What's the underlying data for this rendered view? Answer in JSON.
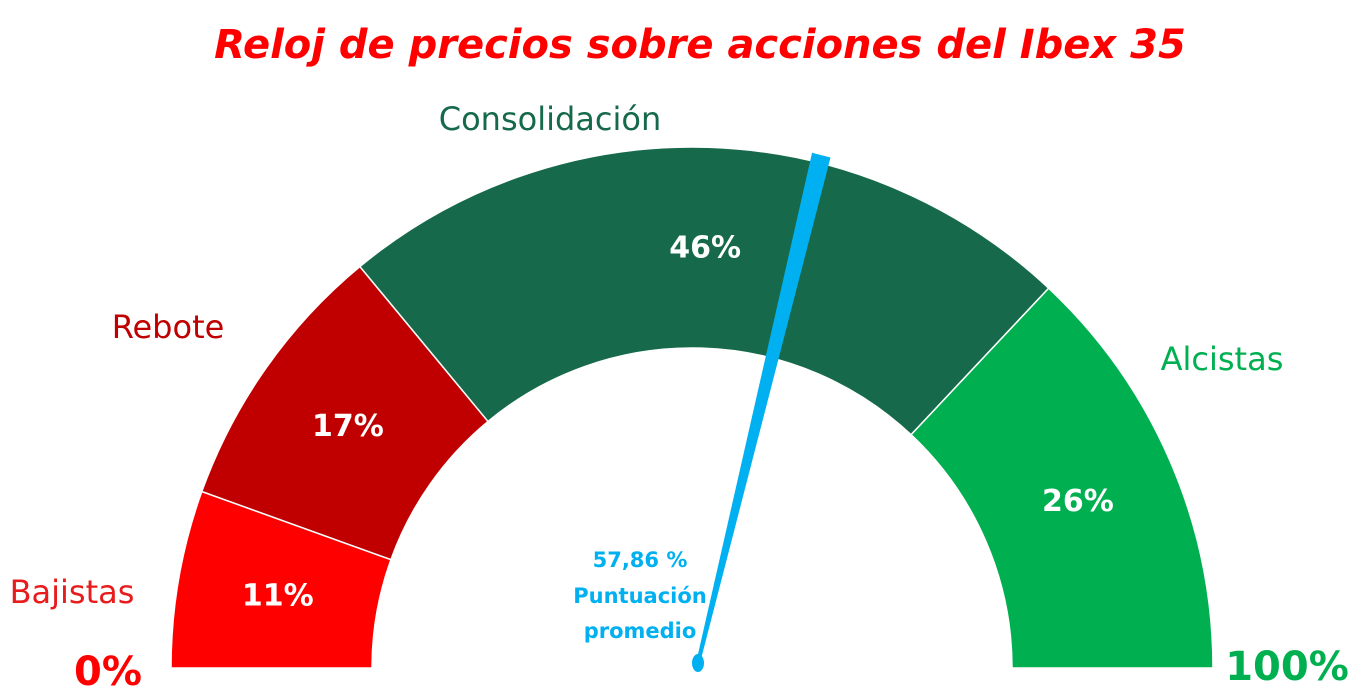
{
  "chart_data": {
    "type": "gauge",
    "title": "Reloj de precios sobre acciones del Ibex 35",
    "title_color": "#ff0000",
    "segments": [
      {
        "name": "Bajistas",
        "value": 11,
        "label": "11%",
        "color": "#ff0000",
        "name_color": "#e81c1c"
      },
      {
        "name": "Rebote",
        "value": 17,
        "label": "17%",
        "color": "#c00000",
        "name_color": "#c00000"
      },
      {
        "name": "Consolidación",
        "value": 46,
        "label": "46%",
        "color": "#16694a",
        "name_color": "#16694a"
      },
      {
        "name": "Alcistas",
        "value": 26,
        "label": "26%",
        "color": "#00b050",
        "name_color": "#00b050"
      }
    ],
    "min_label": "0%",
    "max_label": "100%",
    "min_label_color": "#ff0000",
    "max_label_color": "#00b050",
    "needle": {
      "value": 57.86,
      "value_label": "57,86 %",
      "caption_line1": "Puntuación",
      "caption_line2": "promedio",
      "color": "#00b0f0"
    },
    "range": [
      0,
      100
    ]
  }
}
